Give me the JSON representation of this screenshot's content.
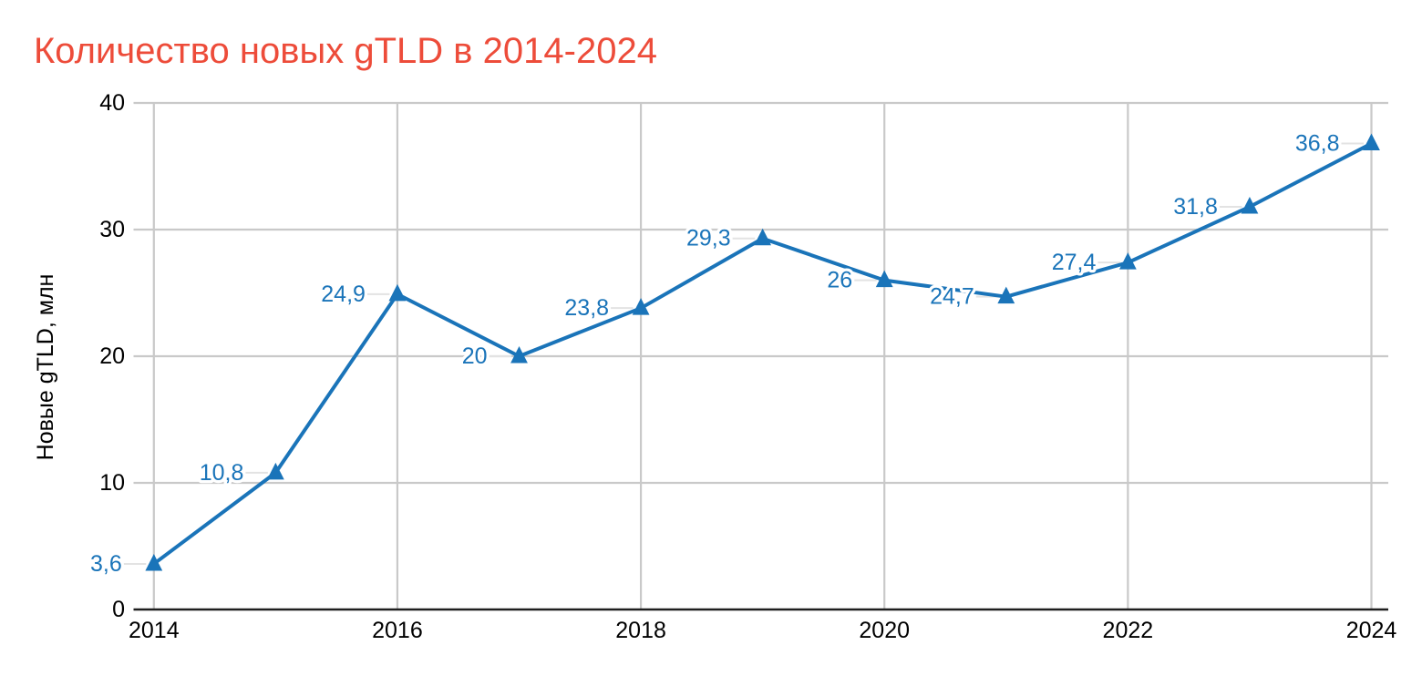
{
  "chart_data": {
    "type": "line",
    "title": "Количество новых gTLD в 2014-2024",
    "xlabel": "",
    "ylabel": "Новые gTLD, млн",
    "x": [
      2014,
      2015,
      2016,
      2017,
      2018,
      2019,
      2020,
      2021,
      2022,
      2023,
      2024
    ],
    "values": [
      3.6,
      10.8,
      24.9,
      20,
      23.8,
      29.3,
      26,
      24.7,
      27.4,
      31.8,
      36.8
    ],
    "point_labels": [
      "3,6",
      "10,8",
      "24,9",
      "20",
      "23,8",
      "29,3",
      "26",
      "24,7",
      "27,4",
      "31,8",
      "36,8"
    ],
    "x_tick_labels": [
      "2014",
      "2016",
      "2018",
      "2020",
      "2022",
      "2024"
    ],
    "x_tick_values": [
      2014,
      2016,
      2018,
      2020,
      2022,
      2024
    ],
    "y_tick_labels": [
      "0",
      "10",
      "20",
      "30",
      "40"
    ],
    "y_tick_values": [
      0,
      10,
      20,
      30,
      40
    ],
    "xlim": [
      2014,
      2024
    ],
    "ylim": [
      0,
      40
    ],
    "grid": "both",
    "legend": "none",
    "marker": "triangle-up",
    "colors": {
      "series": "#1a74b9",
      "title": "#ed4c3a",
      "axis_text": "#000000",
      "gridline": "#c9c9c9",
      "baseline": "#1f1f1f",
      "annotation_stem": "#e3e3e3",
      "background": "#ffffff"
    }
  }
}
